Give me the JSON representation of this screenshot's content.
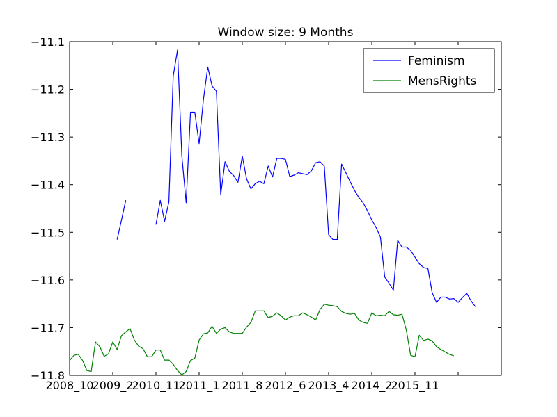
{
  "chart_data": {
    "type": "line",
    "title": "Window size: 9 Months",
    "xlabel": "",
    "ylabel": "",
    "ylim": [
      -11.8,
      -11.1
    ],
    "yticks": [
      -11.8,
      -11.7,
      -11.6,
      -11.5,
      -11.4,
      -11.3,
      -11.2,
      -11.1
    ],
    "ytick_labels": [
      "−11.8",
      "−11.7",
      "−11.6",
      "−11.5",
      "−11.4",
      "−11.3",
      "−11.2",
      "−11.1"
    ],
    "xlim": [
      0,
      100
    ],
    "xticks": [
      0,
      10,
      20,
      30,
      40,
      50,
      60,
      70,
      80,
      90
    ],
    "xtick_labels": [
      "2008_10",
      "2009_2",
      "2010_11",
      "2011_1",
      "2011_8",
      "2012_6",
      "2013_4",
      "2014_2",
      "2015_11",
      ""
    ],
    "grid": false,
    "legend_position": "top-right",
    "series": [
      {
        "name": "Feminism",
        "color": "#0000ff",
        "values": [
          null,
          null,
          null,
          null,
          null,
          null,
          null,
          null,
          null,
          null,
          null,
          -11.515,
          -11.475,
          -11.433,
          null,
          null,
          null,
          null,
          null,
          null,
          -11.484,
          -11.433,
          -11.477,
          -11.436,
          -11.172,
          -11.117,
          -11.34,
          -11.438,
          -11.248,
          -11.248,
          -11.314,
          -11.221,
          -11.153,
          -11.193,
          -11.204,
          -11.421,
          -11.352,
          -11.372,
          -11.381,
          -11.395,
          -11.34,
          -11.388,
          -11.409,
          -11.398,
          -11.393,
          -11.398,
          -11.361,
          -11.384,
          -11.345,
          -11.345,
          -11.347,
          -11.383,
          -11.38,
          -11.375,
          -11.377,
          -11.379,
          -11.371,
          -11.354,
          -11.352,
          -11.361,
          -11.505,
          -11.515,
          -11.515,
          -11.357,
          -11.375,
          -11.394,
          -11.412,
          -11.427,
          -11.438,
          -11.455,
          -11.474,
          -11.49,
          -11.51,
          -11.594,
          -11.607,
          -11.621,
          -11.517,
          -11.531,
          -11.531,
          -11.538,
          -11.552,
          -11.566,
          -11.574,
          -11.576,
          -11.627,
          -11.647,
          -11.636,
          -11.636,
          -11.64,
          -11.639,
          -11.647,
          -11.637,
          -11.628,
          -11.644,
          -11.656
        ]
      },
      {
        "name": "MensRights",
        "color": "#008000",
        "values": [
          -11.769,
          -11.758,
          -11.756,
          -11.769,
          -11.79,
          -11.792,
          -11.73,
          -11.74,
          -11.76,
          -11.755,
          -11.73,
          -11.746,
          -11.717,
          -11.709,
          -11.702,
          -11.726,
          -11.739,
          -11.744,
          -11.761,
          -11.761,
          -11.747,
          -11.747,
          -11.768,
          -11.768,
          -11.777,
          -11.79,
          -11.799,
          -11.792,
          -11.769,
          -11.764,
          -11.726,
          -11.713,
          -11.711,
          -11.697,
          -11.712,
          -11.703,
          -11.7,
          -11.709,
          -11.712,
          -11.712,
          -11.712,
          -11.699,
          -11.689,
          -11.665,
          -11.665,
          -11.665,
          -11.679,
          -11.676,
          -11.669,
          -11.675,
          -11.684,
          -11.678,
          -11.675,
          -11.675,
          -11.669,
          -11.673,
          -11.678,
          -11.684,
          -11.662,
          -11.651,
          -11.653,
          -11.654,
          -11.656,
          -11.666,
          -11.67,
          -11.672,
          -11.67,
          -11.684,
          -11.689,
          -11.691,
          -11.669,
          -11.675,
          -11.674,
          -11.675,
          -11.666,
          -11.673,
          -11.674,
          -11.672,
          -11.705,
          -11.758,
          -11.761,
          -11.716,
          -11.727,
          -11.724,
          -11.728,
          -11.74,
          -11.746,
          -11.751,
          -11.756,
          -11.759
        ]
      }
    ]
  }
}
